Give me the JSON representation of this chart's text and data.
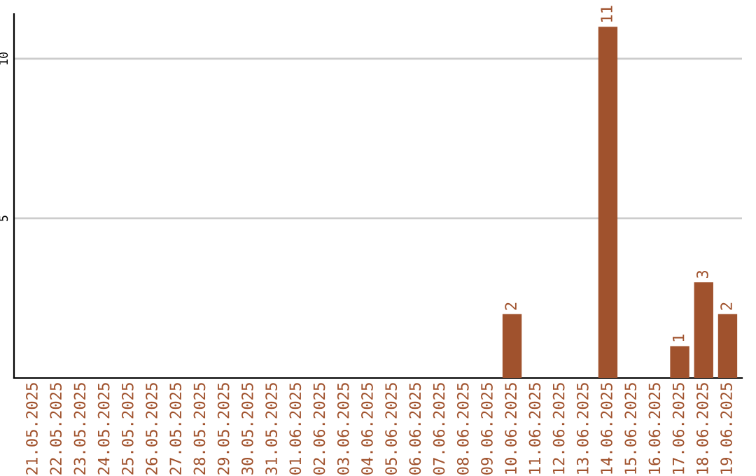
{
  "chart_data": {
    "type": "bar",
    "categories": [
      "21.05.2025",
      "22.05.2025",
      "23.05.2025",
      "24.05.2025",
      "25.05.2025",
      "26.05.2025",
      "27.05.2025",
      "28.05.2025",
      "29.05.2025",
      "30.05.2025",
      "31.05.2025",
      "01.06.2025",
      "02.06.2025",
      "03.06.2025",
      "04.06.2025",
      "05.06.2025",
      "06.06.2025",
      "07.06.2025",
      "08.06.2025",
      "09.06.2025",
      "10.06.2025",
      "11.06.2025",
      "12.06.2025",
      "13.06.2025",
      "14.06.2025",
      "15.06.2025",
      "16.06.2025",
      "17.06.2025",
      "18.06.2025",
      "19.06.2025"
    ],
    "values": [
      0,
      0,
      0,
      0,
      0,
      0,
      0,
      0,
      0,
      0,
      0,
      0,
      0,
      0,
      0,
      0,
      0,
      0,
      0,
      0,
      2,
      0,
      0,
      0,
      11,
      0,
      0,
      1,
      3,
      2
    ],
    "value_labels": [
      null,
      null,
      null,
      null,
      null,
      null,
      null,
      null,
      null,
      null,
      null,
      null,
      null,
      null,
      null,
      null,
      null,
      null,
      null,
      null,
      "2",
      null,
      null,
      null,
      "11",
      null,
      null,
      "1",
      "3",
      "2"
    ],
    "color": "#a0522d",
    "ylim": [
      0,
      11.4
    ],
    "yticks": [
      5,
      10
    ],
    "grid": "y"
  }
}
